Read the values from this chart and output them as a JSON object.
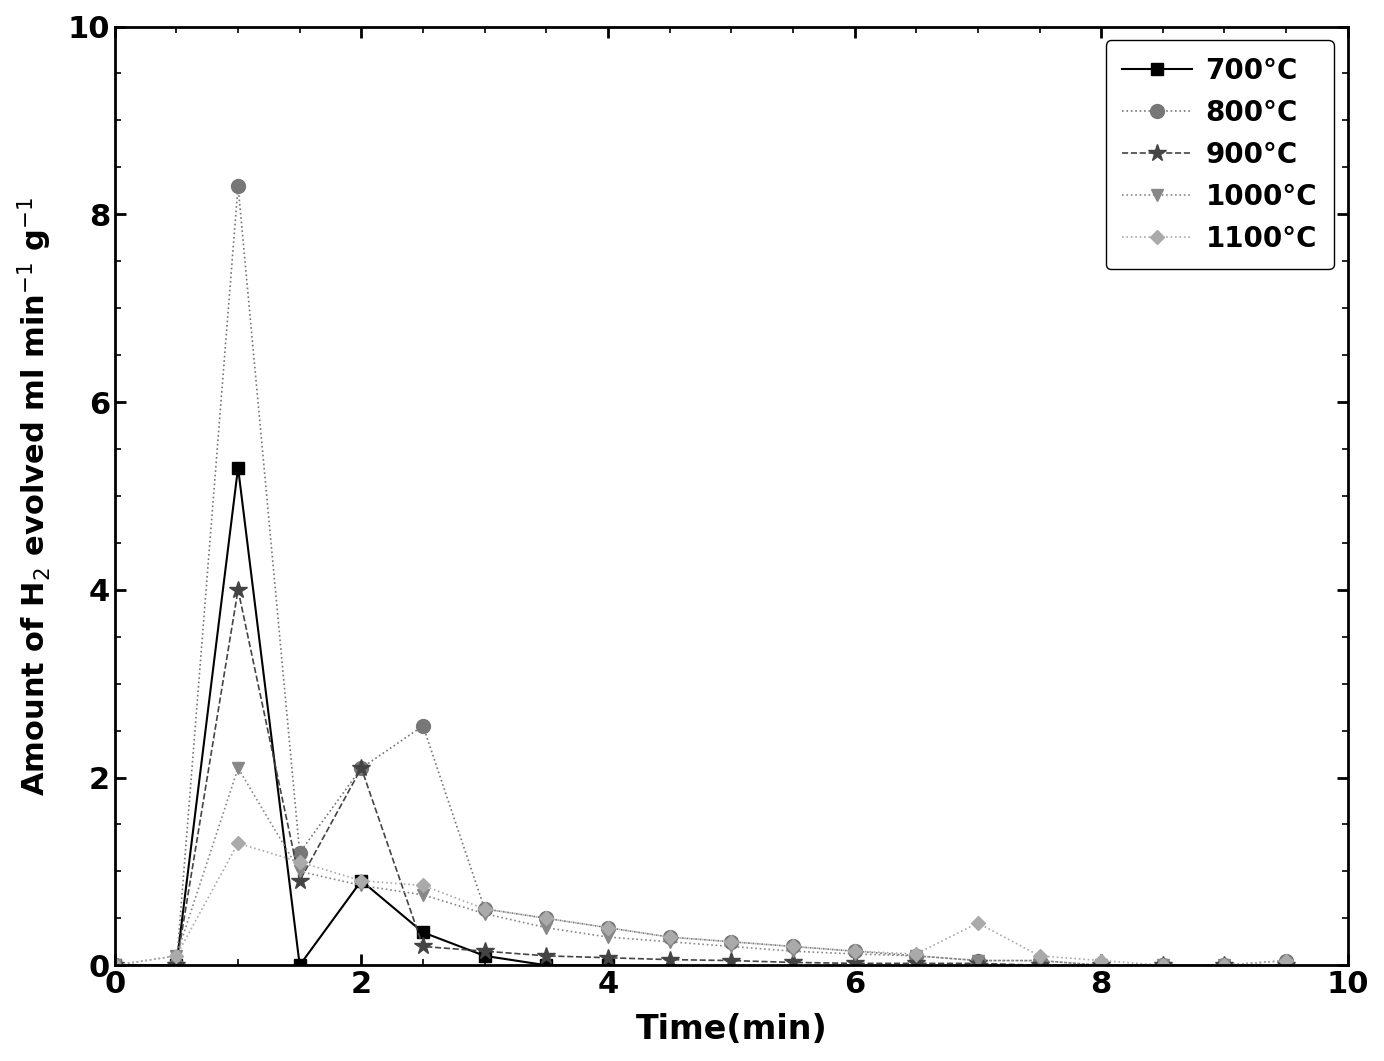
{
  "series": {
    "700": {
      "x": [
        0.0,
        0.5,
        1.0,
        1.5,
        2.0,
        2.5,
        3.0,
        3.5,
        4.0
      ],
      "y": [
        0.0,
        0.0,
        5.3,
        0.0,
        0.9,
        0.35,
        0.1,
        0.0,
        0.0
      ],
      "color": "#000000",
      "marker": "s",
      "linestyle": "-",
      "linewidth": 1.5,
      "markersize": 9,
      "label": "700"
    },
    "800": {
      "x": [
        0.0,
        0.5,
        1.0,
        1.5,
        2.0,
        2.5,
        3.0,
        3.5,
        4.0,
        4.5,
        5.0,
        5.5,
        6.0,
        6.5,
        7.0,
        7.5,
        8.0,
        8.5,
        9.0,
        9.5
      ],
      "y": [
        0.0,
        0.0,
        8.3,
        1.2,
        2.1,
        2.55,
        0.6,
        0.5,
        0.4,
        0.3,
        0.25,
        0.2,
        0.15,
        0.1,
        0.05,
        0.05,
        0.0,
        0.0,
        0.0,
        0.05
      ],
      "color": "#777777",
      "marker": "o",
      "linestyle": ":",
      "linewidth": 1.2,
      "markersize": 10,
      "label": "800"
    },
    "900": {
      "x": [
        0.0,
        0.5,
        1.0,
        1.5,
        2.0,
        2.5,
        3.0,
        3.5,
        4.0,
        4.5,
        5.0,
        5.5,
        6.0,
        6.5,
        7.0,
        7.5,
        8.0,
        8.5,
        9.0,
        9.5
      ],
      "y": [
        0.0,
        0.0,
        4.0,
        0.9,
        2.1,
        0.2,
        0.15,
        0.1,
        0.08,
        0.06,
        0.05,
        0.03,
        0.02,
        0.02,
        0.02,
        0.0,
        0.0,
        0.0,
        0.0,
        0.0
      ],
      "color": "#444444",
      "marker": "*",
      "linestyle": "--",
      "linewidth": 1.2,
      "markersize": 13,
      "label": "900"
    },
    "1000": {
      "x": [
        0.0,
        0.5,
        1.0,
        1.5,
        2.0,
        2.5,
        3.0,
        3.5,
        4.0,
        4.5,
        5.0,
        5.5,
        6.0,
        6.5,
        7.0,
        7.5,
        8.0,
        8.5,
        9.0,
        9.5
      ],
      "y": [
        0.0,
        0.1,
        2.1,
        1.0,
        0.85,
        0.75,
        0.55,
        0.4,
        0.3,
        0.25,
        0.2,
        0.15,
        0.12,
        0.1,
        0.05,
        0.05,
        0.0,
        0.0,
        0.0,
        0.0
      ],
      "color": "#888888",
      "marker": "v",
      "linestyle": ":",
      "linewidth": 1.2,
      "markersize": 9,
      "label": "1000"
    },
    "1100": {
      "x": [
        0.0,
        0.5,
        1.0,
        1.5,
        2.0,
        2.5,
        3.0,
        3.5,
        4.0,
        4.5,
        5.0,
        5.5,
        6.0,
        6.5,
        7.0,
        7.5,
        8.0,
        8.5,
        9.0,
        9.5
      ],
      "y": [
        0.0,
        0.1,
        1.3,
        1.1,
        0.9,
        0.85,
        0.6,
        0.5,
        0.4,
        0.3,
        0.25,
        0.2,
        0.15,
        0.12,
        0.45,
        0.1,
        0.05,
        0.0,
        0.0,
        0.05
      ],
      "color": "#aaaaaa",
      "marker": "D",
      "linestyle": ":",
      "linewidth": 1.2,
      "markersize": 7,
      "label": "1100"
    }
  },
  "xlabel": "Time(min)",
  "ylabel": "Amount of H$_2$ evolved ml min$^{-1}$ g$^{-1}$",
  "xlim": [
    0,
    10
  ],
  "ylim": [
    0,
    10
  ],
  "xticks": [
    0,
    2,
    4,
    6,
    8,
    10
  ],
  "yticks": [
    0,
    2,
    4,
    6,
    8,
    10
  ],
  "xlabel_fontsize": 24,
  "ylabel_fontsize": 22,
  "tick_fontsize": 22,
  "legend_fontsize": 20,
  "background_color": "#ffffff",
  "series_order": [
    "700",
    "800",
    "900",
    "1000",
    "1100"
  ]
}
